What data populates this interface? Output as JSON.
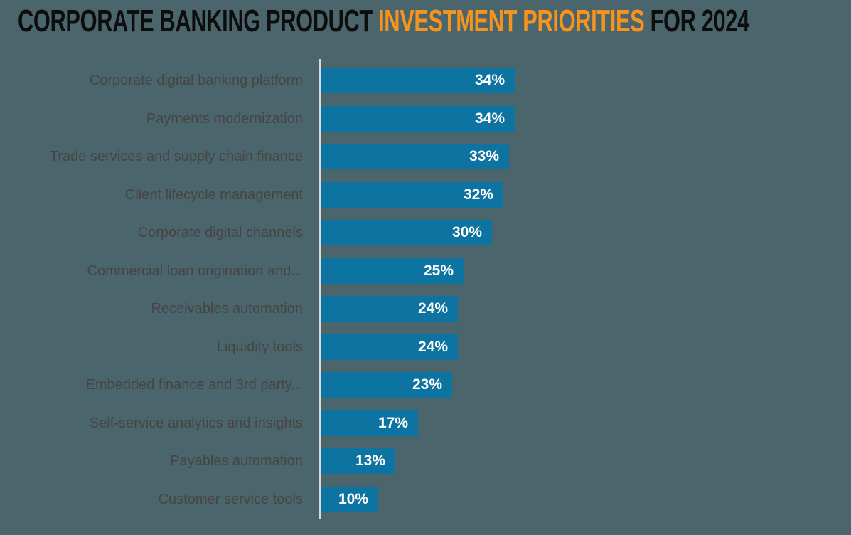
{
  "title": {
    "prefix": "CORPORATE BANKING PRODUCT ",
    "highlight": "INVESTMENT PRIORITIES",
    "suffix": " FOR 2024"
  },
  "colors": {
    "background": "#4b656c",
    "bar": "#0d73a0",
    "title_text": "#0d0d0d",
    "title_highlight": "#f7941d",
    "category_label_text": "#474443",
    "value_label_text": "#ffffff",
    "axis_line": "#d9d9d9"
  },
  "chart_data": {
    "type": "bar",
    "orientation": "horizontal",
    "title": "CORPORATE BANKING PRODUCT INVESTMENT PRIORITIES FOR 2024",
    "categories": [
      "Corporate digital banking platform",
      "Payments modernization",
      "Trade services and supply chain finance",
      "Client lifecycle management",
      "Corporate digital channels",
      "Commercial loan origination and...",
      "Receivables automation",
      "Liquidity tools",
      "Embedded finance and 3rd party...",
      "Self-service analytics and insights",
      "Payables automation",
      "Customer service tools"
    ],
    "values": [
      34,
      34,
      33,
      32,
      30,
      25,
      24,
      24,
      23,
      17,
      13,
      10
    ],
    "value_labels": [
      "34%",
      "34%",
      "33%",
      "32%",
      "30%",
      "25%",
      "24%",
      "24%",
      "23%",
      "17%",
      "13%",
      "10%"
    ],
    "unit": "%",
    "xlim": [
      0,
      40
    ],
    "grid": false,
    "legend": "none",
    "value_label_position": "inside-end",
    "sorted": "descending"
  }
}
